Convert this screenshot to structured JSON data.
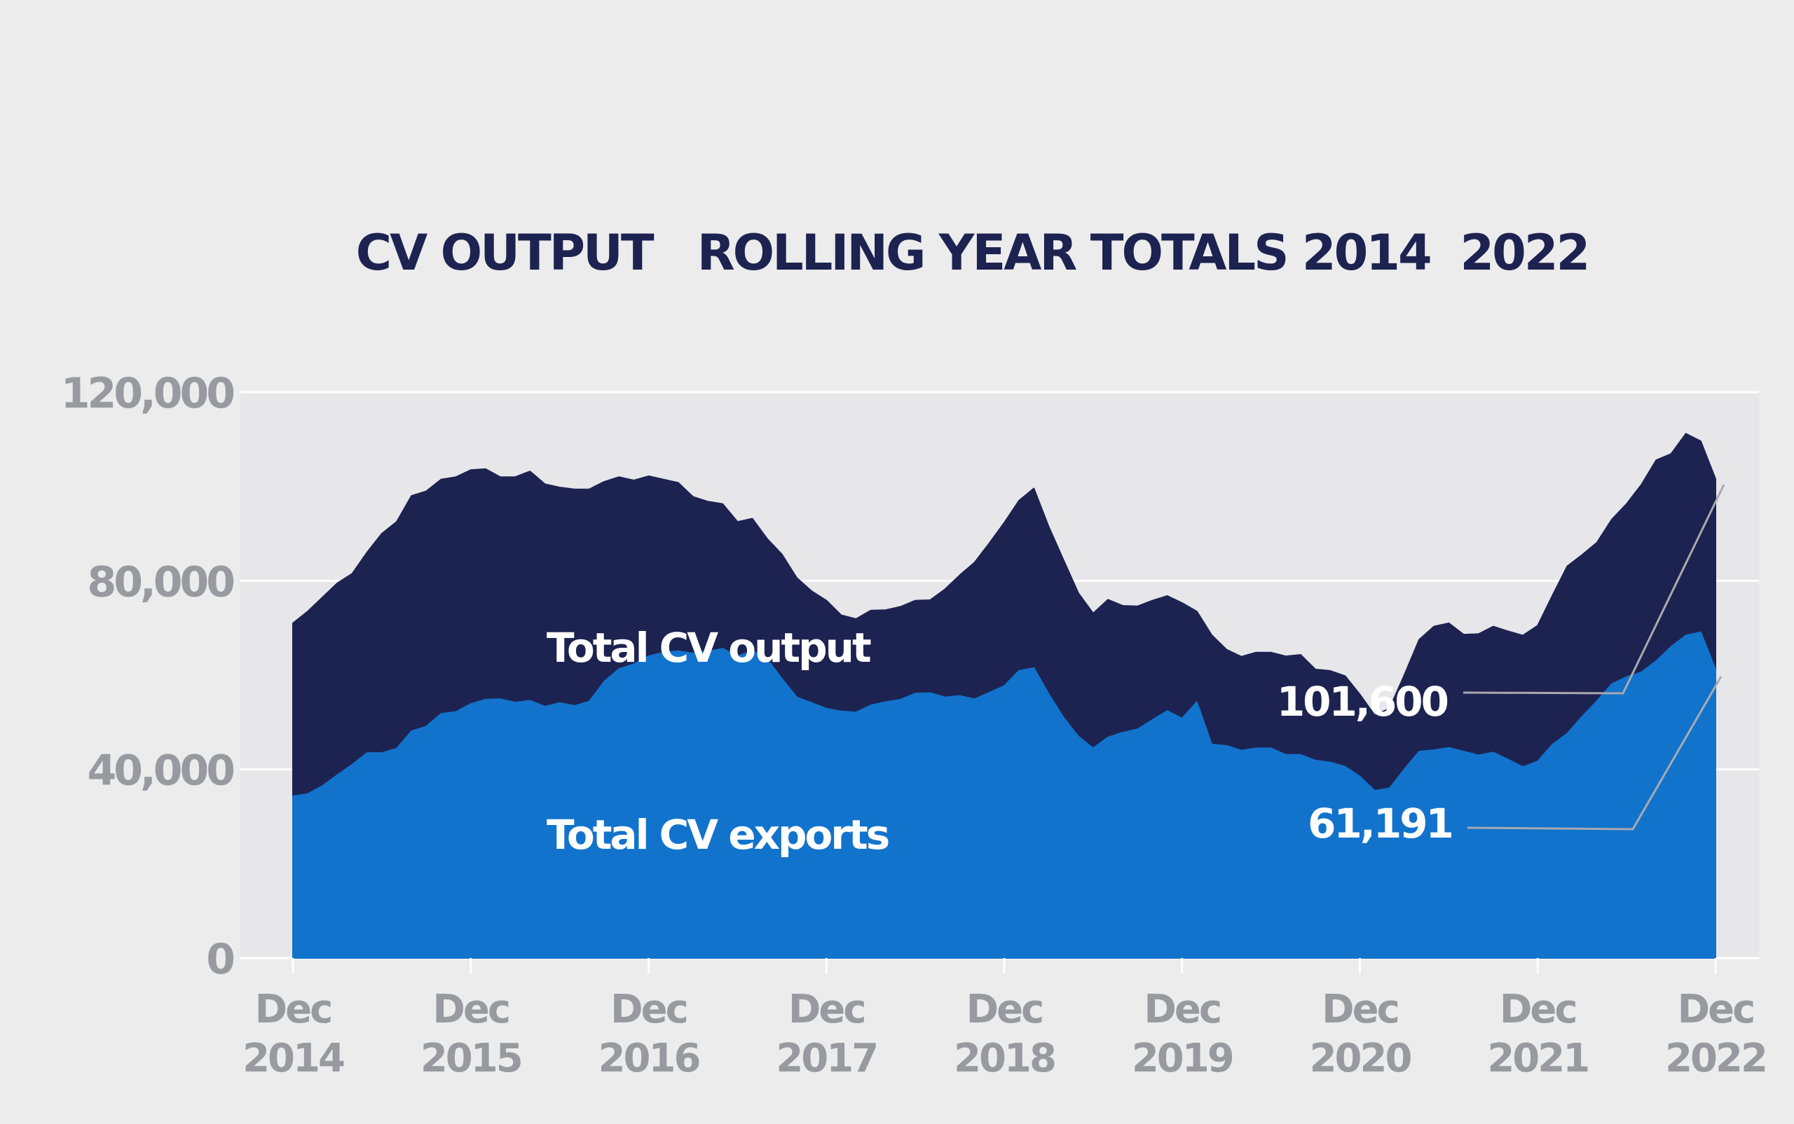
{
  "chart_data": {
    "type": "area",
    "title": "CV OUTPUT   ROLLING YEAR TOTALS 2014  2022",
    "xlabel": "",
    "ylabel": "",
    "ylim": [
      0,
      120000
    ],
    "yticks": [
      "0",
      "40,000",
      "80,000",
      "120,000"
    ],
    "xticks": [
      {
        "date": "2014-12",
        "month": "Dec",
        "year": "2014"
      },
      {
        "date": "2015-12",
        "month": "Dec",
        "year": "2015"
      },
      {
        "date": "2016-12",
        "month": "Dec",
        "year": "2016"
      },
      {
        "date": "2017-12",
        "month": "Dec",
        "year": "2017"
      },
      {
        "date": "2018-12",
        "month": "Dec",
        "year": "2018"
      },
      {
        "date": "2019-12",
        "month": "Dec",
        "year": "2019"
      },
      {
        "date": "2020-12",
        "month": "Dec",
        "year": "2020"
      },
      {
        "date": "2021-12",
        "month": "Dec",
        "year": "2021"
      },
      {
        "date": "2022-12",
        "month": "Dec",
        "year": "2022"
      }
    ],
    "grid": true,
    "x": [
      "2014-12",
      "2015-01",
      "2015-02",
      "2015-03",
      "2015-04",
      "2015-05",
      "2015-06",
      "2015-07",
      "2015-08",
      "2015-09",
      "2015-10",
      "2015-11",
      "2015-12",
      "2016-01",
      "2016-02",
      "2016-03",
      "2016-04",
      "2016-05",
      "2016-06",
      "2016-07",
      "2016-08",
      "2016-09",
      "2016-10",
      "2016-11",
      "2016-12",
      "2017-01",
      "2017-02",
      "2017-03",
      "2017-04",
      "2017-05",
      "2017-06",
      "2017-07",
      "2017-08",
      "2017-09",
      "2017-10",
      "2017-11",
      "2017-12",
      "2018-01",
      "2018-02",
      "2018-03",
      "2018-04",
      "2018-05",
      "2018-06",
      "2018-07",
      "2018-08",
      "2018-09",
      "2018-10",
      "2018-11",
      "2018-12",
      "2019-01",
      "2019-02",
      "2019-03",
      "2019-04",
      "2019-05",
      "2019-06",
      "2019-07",
      "2019-08",
      "2019-09",
      "2019-10",
      "2019-11",
      "2019-12",
      "2020-01",
      "2020-02",
      "2020-03",
      "2020-04",
      "2020-05",
      "2020-06",
      "2020-07",
      "2020-08",
      "2020-09",
      "2020-10",
      "2020-11",
      "2020-12",
      "2021-01",
      "2021-02",
      "2021-03",
      "2021-04",
      "2021-05",
      "2021-06",
      "2021-07",
      "2021-08",
      "2021-09",
      "2021-10",
      "2021-11",
      "2021-12",
      "2022-01",
      "2022-02",
      "2022-03",
      "2022-04",
      "2022-05",
      "2022-06",
      "2022-07",
      "2022-08",
      "2022-09",
      "2022-10",
      "2022-11",
      "2022-12"
    ],
    "series": [
      {
        "name": "Total CV output",
        "color": "#1d2350",
        "values": [
          71000,
          73500,
          76500,
          79500,
          81500,
          86000,
          90000,
          92500,
          98000,
          99000,
          101500,
          102000,
          103500,
          103700,
          102000,
          102000,
          103200,
          100500,
          99800,
          99400,
          99400,
          101000,
          102000,
          101300,
          102200,
          101500,
          100800,
          97800,
          96800,
          96300,
          92500,
          93200,
          88900,
          85600,
          80600,
          77800,
          75800,
          72700,
          71900,
          73700,
          73800,
          74500,
          75800,
          75900,
          78200,
          81200,
          83900,
          88000,
          92300,
          97000,
          99600,
          91500,
          84400,
          77400,
          73100,
          76000,
          74700,
          74600,
          75800,
          76800,
          75300,
          73500,
          68500,
          65400,
          63900,
          64800,
          64800,
          64000,
          64300,
          61200,
          60900,
          59800,
          55900,
          51500,
          52900,
          60000,
          67500,
          70300,
          71000,
          68600,
          68700,
          70300,
          69300,
          68400,
          70500,
          76900,
          83100,
          85500,
          88100,
          93000,
          96300,
          100400,
          105600,
          106900,
          111200,
          109600,
          101600
        ]
      },
      {
        "name": "Total CV exports",
        "color": "#1273cc",
        "values": [
          34300,
          34800,
          36500,
          38800,
          41000,
          43500,
          43500,
          44400,
          48100,
          49100,
          51800,
          52200,
          53900,
          54800,
          54900,
          54200,
          54600,
          53300,
          54100,
          53500,
          54400,
          58600,
          61300,
          62300,
          64000,
          64800,
          65100,
          64600,
          65000,
          65600,
          64000,
          65100,
          63400,
          59200,
          55300,
          54100,
          52900,
          52300,
          52100,
          53600,
          54300,
          54800,
          56100,
          56200,
          55300,
          55600,
          54900,
          56300,
          57700,
          60900,
          61500,
          56000,
          51000,
          47000,
          44500,
          46800,
          47800,
          48500,
          50500,
          52400,
          50800,
          54300,
          45300,
          45000,
          44000,
          44500,
          44500,
          43100,
          43100,
          41900,
          41500,
          40600,
          38500,
          35500,
          36000,
          40000,
          43800,
          44100,
          44600,
          43800,
          43000,
          43600,
          42100,
          40500,
          41700,
          45300,
          47600,
          51200,
          54500,
          58100,
          59600,
          60600,
          63000,
          66000,
          68400,
          69100,
          61191
        ]
      }
    ],
    "legend": [
      {
        "label": "Total CV output",
        "position": "inside-area-upper"
      },
      {
        "label": "Total CV exports",
        "position": "inside-area-lower"
      }
    ],
    "annotations": [
      {
        "text": "101,600",
        "series": "Total CV output",
        "value": 101600
      },
      {
        "text": "61,191",
        "series": "Total CV exports",
        "value": 61191
      }
    ]
  }
}
